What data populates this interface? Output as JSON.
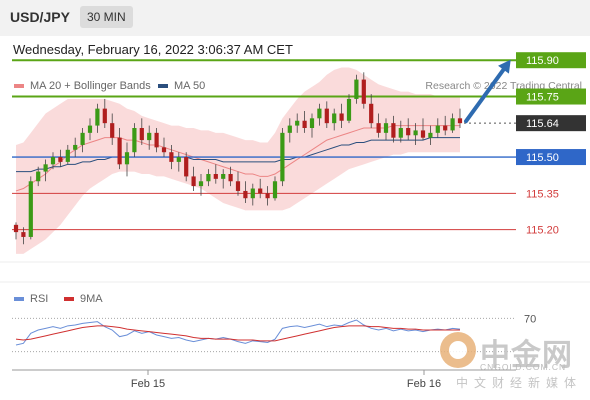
{
  "header": {
    "pair": "USD/JPY",
    "timeframe": "30 MIN"
  },
  "datetime": "Wednesday, February 16, 2022 3:06:37 AM CET",
  "legend": {
    "ma20": {
      "label": "MA 20 + Bollinger Bands",
      "color": "#ec8585"
    },
    "ma50": {
      "label": "MA 50",
      "color": "#2b4f7e"
    },
    "rsi": {
      "label": "RSI",
      "color": "#6a8fd8"
    },
    "rsi_ma": {
      "label": "9MA",
      "color": "#d03030"
    }
  },
  "credit": "Research © 2022 Trading Central",
  "watermark": {
    "brand": "中金网",
    "url": "CNGOLD.COM.CN",
    "sub": "中文财经新媒体"
  },
  "chart_data": [
    {
      "type": "candlestick",
      "title": "",
      "y_range": [
        115.05,
        116.0
      ],
      "x_ticks": [
        "Feb 15",
        "Feb 16"
      ],
      "levels": [
        {
          "label": "115.90",
          "value": 115.9,
          "kind": "resistance",
          "color": "#5aa516"
        },
        {
          "label": "115.75",
          "value": 115.75,
          "kind": "resistance",
          "color": "#5aa516"
        },
        {
          "label": "115.64",
          "value": 115.64,
          "kind": "last-price",
          "color": "#333333"
        },
        {
          "label": "115.50",
          "value": 115.5,
          "kind": "pivot",
          "color": "#2f67c8"
        },
        {
          "label": "115.35",
          "value": 115.35,
          "kind": "support",
          "color": "#d23c3c"
        },
        {
          "label": "115.20",
          "value": 115.2,
          "kind": "support",
          "color": "#d23c3c"
        }
      ],
      "colors": {
        "up": "#3b9a16",
        "down": "#b01e1e",
        "band": "#f8cccc",
        "pivot": "#2f67c8"
      },
      "ohlc": [
        [
          115.22,
          115.23,
          115.16,
          115.19
        ],
        [
          115.19,
          115.21,
          115.14,
          115.17
        ],
        [
          115.17,
          115.42,
          115.16,
          115.4
        ],
        [
          115.4,
          115.46,
          115.38,
          115.44
        ],
        [
          115.44,
          115.49,
          115.4,
          115.47
        ],
        [
          115.47,
          115.52,
          115.45,
          115.5
        ],
        [
          115.5,
          115.53,
          115.46,
          115.48
        ],
        [
          115.48,
          115.55,
          115.47,
          115.53
        ],
        [
          115.53,
          115.58,
          115.5,
          115.55
        ],
        [
          115.55,
          115.62,
          115.52,
          115.6
        ],
        [
          115.6,
          115.66,
          115.57,
          115.63
        ],
        [
          115.63,
          115.72,
          115.6,
          115.7
        ],
        [
          115.7,
          115.74,
          115.62,
          115.64
        ],
        [
          115.64,
          115.68,
          115.55,
          115.58
        ],
        [
          115.58,
          115.62,
          115.45,
          115.47
        ],
        [
          115.47,
          115.56,
          115.42,
          115.52
        ],
        [
          115.52,
          115.64,
          115.5,
          115.62
        ],
        [
          115.62,
          115.66,
          115.55,
          115.57
        ],
        [
          115.57,
          115.63,
          115.53,
          115.6
        ],
        [
          115.6,
          115.62,
          115.52,
          115.54
        ],
        [
          115.54,
          115.58,
          115.5,
          115.52
        ],
        [
          115.52,
          115.55,
          115.45,
          115.48
        ],
        [
          115.48,
          115.52,
          115.44,
          115.5
        ],
        [
          115.5,
          115.52,
          115.4,
          115.42
        ],
        [
          115.42,
          115.46,
          115.36,
          115.38
        ],
        [
          115.38,
          115.43,
          115.34,
          115.4
        ],
        [
          115.4,
          115.45,
          115.38,
          115.43
        ],
        [
          115.43,
          115.47,
          115.39,
          115.41
        ],
        [
          115.41,
          115.45,
          115.37,
          115.43
        ],
        [
          115.43,
          115.46,
          115.38,
          115.4
        ],
        [
          115.4,
          115.44,
          115.34,
          115.36
        ],
        [
          115.36,
          115.4,
          115.31,
          115.33
        ],
        [
          115.33,
          115.39,
          115.3,
          115.37
        ],
        [
          115.37,
          115.41,
          115.33,
          115.35
        ],
        [
          115.35,
          115.38,
          115.3,
          115.33
        ],
        [
          115.33,
          115.42,
          115.32,
          115.4
        ],
        [
          115.4,
          115.62,
          115.38,
          115.6
        ],
        [
          115.6,
          115.66,
          115.56,
          115.63
        ],
        [
          115.63,
          115.68,
          115.6,
          115.65
        ],
        [
          115.65,
          115.69,
          115.6,
          115.62
        ],
        [
          115.62,
          115.68,
          115.58,
          115.66
        ],
        [
          115.66,
          115.72,
          115.63,
          115.7
        ],
        [
          115.7,
          115.73,
          115.62,
          115.64
        ],
        [
          115.64,
          115.7,
          115.61,
          115.68
        ],
        [
          115.68,
          115.72,
          115.62,
          115.65
        ],
        [
          115.65,
          115.76,
          115.64,
          115.74
        ],
        [
          115.74,
          115.84,
          115.72,
          115.82
        ],
        [
          115.82,
          115.85,
          115.7,
          115.72
        ],
        [
          115.72,
          115.76,
          115.62,
          115.64
        ],
        [
          115.64,
          115.68,
          115.58,
          115.6
        ],
        [
          115.6,
          115.66,
          115.57,
          115.64
        ],
        [
          115.64,
          115.67,
          115.56,
          115.58
        ],
        [
          115.58,
          115.65,
          115.56,
          115.62
        ],
        [
          115.62,
          115.66,
          115.57,
          115.59
        ],
        [
          115.59,
          115.64,
          115.55,
          115.61
        ],
        [
          115.61,
          115.66,
          115.57,
          115.58
        ],
        [
          115.58,
          115.63,
          115.55,
          115.6
        ],
        [
          115.6,
          115.66,
          115.58,
          115.63
        ],
        [
          115.63,
          115.67,
          115.59,
          115.61
        ],
        [
          115.61,
          115.68,
          115.6,
          115.66
        ],
        [
          115.66,
          115.7,
          115.62,
          115.64
        ]
      ],
      "ma20": [
        115.36,
        115.37,
        115.39,
        115.41,
        115.43,
        115.46,
        115.48,
        115.51,
        115.53,
        115.55,
        115.56,
        115.57,
        115.58,
        115.58,
        115.58,
        115.57,
        115.57,
        115.56,
        115.55,
        115.55,
        115.54,
        115.53,
        115.52,
        115.51,
        115.5,
        115.49,
        115.48,
        115.47,
        115.46,
        115.45,
        115.44,
        115.43,
        115.43,
        115.42,
        115.42,
        115.43,
        115.45,
        115.47,
        115.49,
        115.51,
        115.53,
        115.55,
        115.57,
        115.58,
        115.59,
        115.6,
        115.61,
        115.62,
        115.62,
        115.62,
        115.62,
        115.63,
        115.63,
        115.63,
        115.63,
        115.63,
        115.63,
        115.63,
        115.63,
        115.63,
        115.63
      ],
      "band_upper": [
        115.55,
        115.56,
        115.6,
        115.64,
        115.68,
        115.7,
        115.72,
        115.74,
        115.74,
        115.74,
        115.74,
        115.74,
        115.74,
        115.73,
        115.72,
        115.7,
        115.69,
        115.67,
        115.66,
        115.65,
        115.64,
        115.63,
        115.63,
        115.62,
        115.62,
        115.61,
        115.61,
        115.6,
        115.6,
        115.59,
        115.58,
        115.57,
        115.57,
        115.56,
        115.56,
        115.6,
        115.66,
        115.7,
        115.74,
        115.77,
        115.79,
        115.81,
        115.84,
        115.86,
        115.87,
        115.87,
        115.86,
        115.84,
        115.82,
        115.8,
        115.79,
        115.78,
        115.77,
        115.77,
        115.76,
        115.76,
        115.76,
        115.75,
        115.75,
        115.75,
        115.75
      ],
      "band_lower": [
        115.1,
        115.1,
        115.12,
        115.14,
        115.16,
        115.19,
        115.22,
        115.26,
        115.3,
        115.34,
        115.37,
        115.39,
        115.41,
        115.43,
        115.44,
        115.44,
        115.44,
        115.43,
        115.43,
        115.42,
        115.42,
        115.41,
        115.4,
        115.39,
        115.38,
        115.37,
        115.35,
        115.33,
        115.31,
        115.3,
        115.29,
        115.28,
        115.28,
        115.28,
        115.28,
        115.28,
        115.28,
        115.29,
        115.31,
        115.33,
        115.35,
        115.37,
        115.39,
        115.41,
        115.43,
        115.45,
        115.46,
        115.47,
        115.48,
        115.49,
        115.5,
        115.51,
        115.51,
        115.52,
        115.52,
        115.52,
        115.52,
        115.52,
        115.52,
        115.52,
        115.52
      ],
      "ma50": [
        115.44,
        115.44,
        115.44,
        115.45,
        115.45,
        115.46,
        115.46,
        115.47,
        115.47,
        115.48,
        115.48,
        115.49,
        115.49,
        115.5,
        115.5,
        115.5,
        115.5,
        115.5,
        115.5,
        115.5,
        115.5,
        115.5,
        115.5,
        115.5,
        115.49,
        115.49,
        115.49,
        115.49,
        115.48,
        115.48,
        115.48,
        115.48,
        115.48,
        115.48,
        115.48,
        115.48,
        115.49,
        115.49,
        115.5,
        115.5,
        115.51,
        115.52,
        115.53,
        115.54,
        115.55,
        115.55,
        115.56,
        115.56,
        115.57,
        115.57,
        115.57,
        115.57,
        115.57,
        115.57,
        115.57,
        115.57,
        115.58,
        115.58,
        115.58,
        115.58,
        115.58
      ],
      "projection": {
        "from": 115.64,
        "to": 115.9
      }
    },
    {
      "type": "line",
      "title": "",
      "y_range": [
        20,
        80
      ],
      "y_ticks": [
        70
      ],
      "series": [
        {
          "name": "RSI",
          "color": "#6a8fd8",
          "values": [
            38,
            40,
            52,
            56,
            58,
            60,
            58,
            61,
            62,
            64,
            65,
            66,
            60,
            56,
            48,
            50,
            55,
            52,
            54,
            50,
            48,
            46,
            47,
            44,
            42,
            44,
            46,
            45,
            47,
            45,
            42,
            40,
            43,
            42,
            41,
            45,
            58,
            60,
            61,
            59,
            61,
            63,
            60,
            62,
            61,
            65,
            68,
            62,
            58,
            56,
            58,
            55,
            57,
            55,
            56,
            54,
            56,
            57,
            56,
            58,
            57
          ]
        },
        {
          "name": "9MA",
          "color": "#d03030",
          "values": [
            45,
            44,
            45,
            47,
            49,
            51,
            53,
            55,
            57,
            59,
            60,
            61,
            61,
            60,
            59,
            57,
            56,
            55,
            54,
            53,
            52,
            51,
            50,
            49,
            47,
            46,
            46,
            45,
            45,
            45,
            44,
            44,
            44,
            43,
            43,
            43,
            45,
            47,
            49,
            51,
            53,
            55,
            57,
            59,
            60,
            61,
            61,
            61,
            60,
            60,
            59,
            58,
            58,
            57,
            57,
            56,
            56,
            56,
            56,
            56,
            56
          ]
        }
      ]
    }
  ]
}
